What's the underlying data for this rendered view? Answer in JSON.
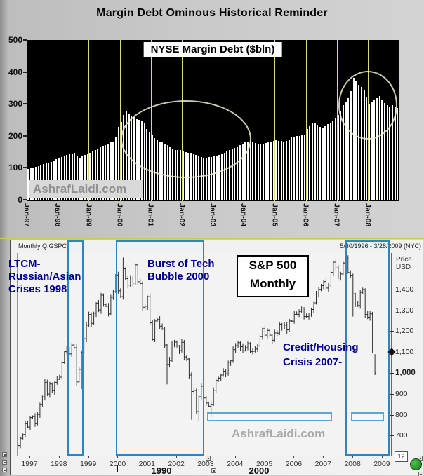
{
  "top_chart": {
    "title": "Margin Debt Ominous Historical Reminder",
    "inner_label": "NYSE Margin Debt ($bln)",
    "watermark": "AshrafLaidi.com",
    "y_tick_labels": [
      "500",
      "400",
      "300",
      "200",
      "100",
      "0"
    ],
    "x_tick_labels": [
      "Jan-97",
      "Jan-98",
      "Jan-99",
      "Jan-00",
      "Jan-01",
      "Jan-02",
      "Jan-03",
      "Jan-04",
      "Jan-05",
      "Jan-06",
      "Jan-07",
      "Jan-08"
    ]
  },
  "bottom_chart": {
    "header_left": "Monthly Q.GSPC",
    "header_right": "5/30/1996 - 3/28/2009 (NYC)",
    "axis_title_line1": "Price",
    "axis_title_line2": "USD",
    "price_tick_labels": [
      "1,400",
      "1,300",
      "1,200",
      "1,100",
      "1,000",
      "900",
      "800",
      "700"
    ],
    "bold_price_label": "1,000",
    "annotations": {
      "ltcm_lines": [
        "LTCM-",
        "Russian/Asian",
        "Crises 1998"
      ],
      "tech_lines": [
        "Burst of Tech",
        "Bubble 2000"
      ],
      "sp_box_lines": [
        "S&P 500",
        "Monthly"
      ],
      "credit_lines": [
        "Credit/Housing",
        "Crisis 2007-"
      ]
    },
    "watermark": "AshrafLaidi.com",
    "year_labels": [
      "1997",
      "1998",
      "1999",
      "2000",
      "2001",
      "2002",
      "2003",
      "2004",
      "2005",
      "2006",
      "2007",
      "2008",
      "2009"
    ],
    "decade_labels": [
      "1990",
      "2000"
    ],
    "interval_badge": "12"
  },
  "colors": {
    "highlight_blue": "#2a85c0",
    "annotation_navy": "#00008b",
    "grid_yellow": "#ded87e",
    "ellipse_cream": "#efedcc",
    "plot_black": "#000000",
    "green_dot": "#2d9e2d"
  },
  "chart_data": [
    {
      "type": "bar",
      "title": "NYSE Margin Debt ($bln)",
      "unit": "$bln",
      "frequency": "monthly",
      "start_month": "1997-01",
      "ylim": [
        0,
        500
      ],
      "y_ticks": [
        0,
        100,
        200,
        300,
        400,
        500
      ],
      "x_tick_labels": [
        "Jan-97",
        "Jan-98",
        "Jan-99",
        "Jan-00",
        "Jan-01",
        "Jan-02",
        "Jan-03",
        "Jan-04",
        "Jan-05",
        "Jan-06",
        "Jan-07",
        "Jan-08"
      ],
      "values": [
        97,
        99,
        101,
        103,
        106,
        108,
        111,
        113,
        116,
        118,
        121,
        127,
        129,
        133,
        137,
        140,
        143,
        145,
        147,
        138,
        131,
        136,
        141,
        144,
        147,
        151,
        156,
        161,
        165,
        168,
        172,
        176,
        179,
        182,
        196,
        228,
        243,
        265,
        278,
        270,
        262,
        258,
        252,
        250,
        246,
        238,
        222,
        210,
        202,
        194,
        186,
        182,
        179,
        176,
        172,
        164,
        157,
        155,
        156,
        155,
        152,
        150,
        148,
        146,
        144,
        141,
        137,
        134,
        130,
        131,
        133,
        134,
        136,
        138,
        140,
        143,
        148,
        152,
        156,
        160,
        163,
        166,
        170,
        173,
        180,
        183,
        184,
        181,
        178,
        175,
        174,
        176,
        178,
        180,
        182,
        184,
        186,
        185,
        184,
        183,
        185,
        188,
        195,
        198,
        200,
        199,
        202,
        205,
        221,
        230,
        240,
        238,
        232,
        228,
        226,
        230,
        236,
        242,
        248,
        256,
        266,
        278,
        295,
        308,
        318,
        340,
        381,
        370,
        360,
        352,
        345,
        322,
        300,
        306,
        313,
        318,
        325,
        314,
        302,
        296,
        292,
        295,
        291,
        288
      ],
      "highlight_ellipses": [
        "2000-2003 margin debt peak",
        "2007-2008 margin debt peak"
      ]
    },
    {
      "type": "ohlc",
      "title": "S&P 500 Monthly",
      "symbol": "Q.GSPC",
      "frequency": "monthly",
      "start_month": "1996-06",
      "date_range": "5/30/1996 - 3/28/2009 (NYC)",
      "visible_price_ticks": [
        1400,
        1300,
        1200,
        1100,
        1000,
        900,
        800,
        700
      ],
      "last_price_marker": 1100,
      "closes": [
        671,
        640,
        652,
        687,
        705,
        757,
        741,
        786,
        791,
        757,
        801,
        848,
        885,
        954,
        899,
        947,
        915,
        955,
        970,
        980,
        1049,
        1102,
        1112,
        1091,
        1134,
        1121,
        957,
        1017,
        1099,
        1164,
        1229,
        1280,
        1238,
        1286,
        1335,
        1302,
        1373,
        1329,
        1320,
        1283,
        1363,
        1389,
        1469,
        1394,
        1366,
        1499,
        1452,
        1421,
        1455,
        1431,
        1518,
        1437,
        1429,
        1315,
        1320,
        1366,
        1240,
        1160,
        1249,
        1256,
        1224,
        1211,
        1134,
        1041,
        1060,
        1139,
        1148,
        1130,
        1107,
        1147,
        1077,
        1067,
        990,
        911,
        916,
        815,
        886,
        936,
        880,
        856,
        841,
        848,
        917,
        964,
        975,
        990,
        1008,
        996,
        1051,
        1058,
        1112,
        1131,
        1145,
        1126,
        1107,
        1121,
        1141,
        1102,
        1104,
        1115,
        1130,
        1174,
        1212,
        1181,
        1204,
        1181,
        1157,
        1192,
        1191,
        1234,
        1220,
        1229,
        1207,
        1249,
        1248,
        1280,
        1281,
        1295,
        1311,
        1270,
        1270,
        1277,
        1304,
        1336,
        1378,
        1401,
        1418,
        1438,
        1407,
        1421,
        1482,
        1531,
        1503,
        1455,
        1474,
        1527,
        1549,
        1481,
        1468,
        1379,
        1331,
        1323,
        1386,
        1400,
        1280,
        1267,
        1283,
        1106,
        1000
      ],
      "extreme_overrides": {
        "26": {
          "low": 937
        },
        "28": {
          "low": 923
        },
        "45": {
          "high": 1553
        },
        "63": {
          "low": 945
        },
        "73": {
          "low": 776
        },
        "76": {
          "low": 769
        },
        "81": {
          "low": 789
        },
        "136": {
          "high": 1576
        },
        "139": {
          "low": 1270
        },
        "148": {
          "high": 1090,
          "low": 990
        }
      },
      "highlight_boxes": [
        "LTCM-Russian/Asian Crises 1998",
        "Burst of Tech Bubble 2000",
        "Credit/Housing Crisis 2007-"
      ]
    }
  ]
}
